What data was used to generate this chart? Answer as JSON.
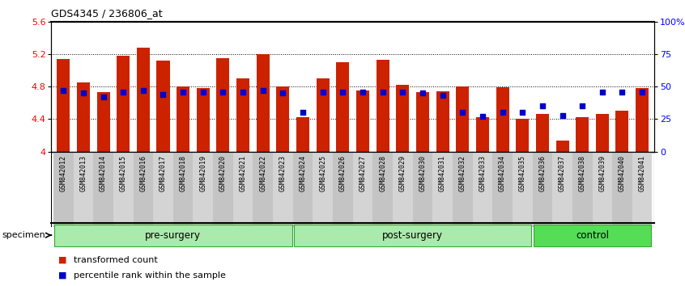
{
  "title": "GDS4345 / 236806_at",
  "samples": [
    "GSM842012",
    "GSM842013",
    "GSM842014",
    "GSM842015",
    "GSM842016",
    "GSM842017",
    "GSM842018",
    "GSM842019",
    "GSM842020",
    "GSM842021",
    "GSM842022",
    "GSM842023",
    "GSM842024",
    "GSM842025",
    "GSM842026",
    "GSM842027",
    "GSM842028",
    "GSM842029",
    "GSM842030",
    "GSM842031",
    "GSM842032",
    "GSM842033",
    "GSM842034",
    "GSM842035",
    "GSM842036",
    "GSM842037",
    "GSM842038",
    "GSM842039",
    "GSM842040",
    "GSM842041"
  ],
  "bar_values": [
    5.14,
    4.85,
    4.73,
    5.18,
    5.28,
    5.12,
    4.8,
    4.78,
    5.15,
    4.9,
    5.2,
    4.8,
    4.42,
    4.9,
    5.1,
    4.75,
    5.13,
    4.82,
    4.73,
    4.74,
    4.8,
    4.42,
    4.79,
    4.4,
    4.46,
    4.14,
    4.42,
    4.46,
    4.5,
    4.78
  ],
  "percentile_values": [
    47,
    45,
    42,
    46,
    47,
    44,
    46,
    46,
    46,
    46,
    47,
    45,
    30,
    46,
    46,
    46,
    46,
    46,
    45,
    43,
    30,
    27,
    30,
    30,
    35,
    28,
    35,
    46,
    46,
    46
  ],
  "group_labels": [
    "pre-surgery",
    "post-surgery",
    "control"
  ],
  "group_ranges": [
    [
      0,
      11
    ],
    [
      12,
      23
    ],
    [
      24,
      29
    ]
  ],
  "group_light_color": "#AAEAAA",
  "group_dark_color": "#55DD55",
  "group_border_color": "#33AA33",
  "ymin": 4.0,
  "ymax": 5.6,
  "bar_color": "#CC2200",
  "dot_color": "#0000CC",
  "bar_bottom": 4.0,
  "yticks_left": [
    4.0,
    4.4,
    4.8,
    5.2,
    5.6
  ],
  "ytick_left_labels": [
    "4",
    "4.4",
    "4.8",
    "5.2",
    "5.6"
  ],
  "yticks_right_vals": [
    0,
    25,
    50,
    75,
    100
  ],
  "ytick_right_labels": [
    "0",
    "25",
    "50",
    "75",
    "100%"
  ],
  "grid_lines": [
    4.4,
    4.8,
    5.2
  ],
  "xlabel_specimen": "specimen",
  "legend_items": [
    {
      "color": "#CC2200",
      "label": "transformed count"
    },
    {
      "color": "#0000CC",
      "label": "percentile rank within the sample"
    }
  ],
  "tick_shade_even": "#C4C4C4",
  "tick_shade_odd": "#D4D4D4"
}
